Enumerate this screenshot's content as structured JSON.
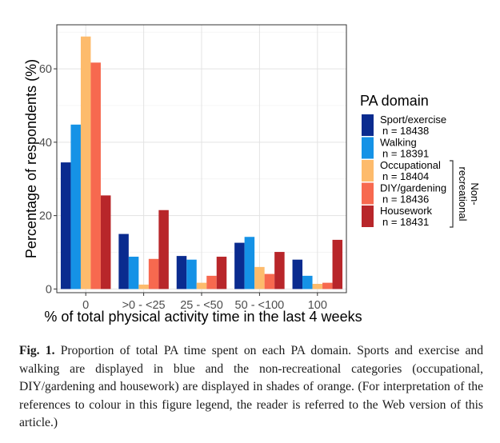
{
  "chart_data": {
    "type": "bar",
    "xlabel": "% of total physical activity time in the last 4 weeks",
    "ylabel": "Percentage of respondents (%)",
    "categories": [
      "0",
      ">0 - <25",
      "25 - <50",
      "50 - <100",
      "100"
    ],
    "ylim": [
      -1,
      72
    ],
    "yticks": [
      0,
      20,
      40,
      60
    ],
    "grid": true,
    "legend_position": "right",
    "legend_title": "PA domain",
    "legend_bracket_label": "Non-\nrecreational",
    "series": [
      {
        "name": "Sport/exercise",
        "n_label": "n = 18438",
        "color": "#0a2b8f",
        "values": [
          34.5,
          15.0,
          9.0,
          12.6,
          8.0
        ]
      },
      {
        "name": "Walking",
        "n_label": "n = 18391",
        "color": "#1592e6",
        "values": [
          44.8,
          8.8,
          8.0,
          14.2,
          3.6
        ]
      },
      {
        "name": "Occupational",
        "n_label": "n = 18404",
        "color": "#fdbb6c",
        "values": [
          68.8,
          1.2,
          1.7,
          6.0,
          1.4
        ]
      },
      {
        "name": "DIY/gardening",
        "n_label": "n = 18436",
        "color": "#f7694f",
        "values": [
          61.7,
          8.2,
          3.6,
          4.1,
          1.7
        ]
      },
      {
        "name": "Housework",
        "n_label": "n = 18431",
        "color": "#b8262a",
        "values": [
          25.5,
          21.5,
          8.8,
          10.1,
          13.4
        ]
      }
    ]
  },
  "caption": {
    "label": "Fig. 1.",
    "text": "Proportion of total PA time spent on each PA domain. Sports and exercise and walking are displayed in blue and the non-recreational categories (occupational, DIY/gardening and housework) are displayed in shades of orange. (For interpretation of the references to colour in this figure legend, the reader is referred to the Web version of this article.)"
  }
}
